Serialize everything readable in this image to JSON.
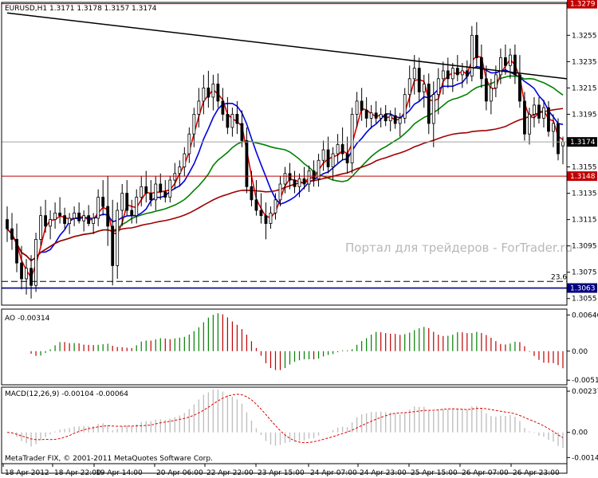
{
  "chart_data": {
    "type": "candlestick",
    "symbol_header": "EURUSD,H1  1.3171 1.3178 1.3157 1.3174",
    "watermark": "Портал для трейдеров - ForTrader.ru",
    "copyright": "MetaTrader FIX, © 2001-2011 MetaQuotes Software Corp.",
    "price_panel": {
      "ylim": [
        1.305,
        1.328
      ],
      "y_ticks": [
        "1.3255",
        "1.3235",
        "1.3215",
        "1.3195",
        "1.3174",
        "1.3155",
        "1.3135",
        "1.3115",
        "1.3095",
        "1.3075",
        "1.3055"
      ],
      "tick_values": [
        1.3255,
        1.3235,
        1.3215,
        1.3195,
        1.3174,
        1.3155,
        1.3135,
        1.3115,
        1.3095,
        1.3075,
        1.3055
      ],
      "levels": [
        {
          "label": "1.3279",
          "value": 1.3279,
          "color": "#c00000",
          "style": "solid",
          "bg": "#c00000"
        },
        {
          "label": "1.3174",
          "value": 1.3174,
          "color": "#a0a0a0",
          "style": "solid",
          "bg": "#000000"
        },
        {
          "label": "1.3148",
          "value": 1.3148,
          "color": "#c00000",
          "style": "solid",
          "bg": "#c00000"
        },
        {
          "label": "1.3063",
          "value": 1.3063,
          "color": "#000080",
          "style": "solid",
          "bg": "#000080"
        }
      ],
      "fib_label": "23.6",
      "fib_value": 1.3068,
      "trendline": {
        "from": [
          0,
          1.3272
        ],
        "to": [
          125,
          1.3222
        ]
      },
      "candles": [
        {
          "o": 1.3115,
          "h": 1.3125,
          "l": 1.3098,
          "c": 1.3108
        },
        {
          "o": 1.3108,
          "h": 1.312,
          "l": 1.3092,
          "c": 1.31
        },
        {
          "o": 1.31,
          "h": 1.3112,
          "l": 1.3075,
          "c": 1.3082
        },
        {
          "o": 1.3082,
          "h": 1.3095,
          "l": 1.3062,
          "c": 1.307
        },
        {
          "o": 1.307,
          "h": 1.3085,
          "l": 1.3058,
          "c": 1.3078
        },
        {
          "o": 1.3078,
          "h": 1.3088,
          "l": 1.3055,
          "c": 1.3065
        },
        {
          "o": 1.3065,
          "h": 1.3105,
          "l": 1.306,
          "c": 1.31
        },
        {
          "o": 1.31,
          "h": 1.3125,
          "l": 1.3095,
          "c": 1.3118
        },
        {
          "o": 1.3118,
          "h": 1.313,
          "l": 1.3105,
          "c": 1.311
        },
        {
          "o": 1.311,
          "h": 1.3122,
          "l": 1.31,
          "c": 1.3115
        },
        {
          "o": 1.3115,
          "h": 1.3128,
          "l": 1.3108,
          "c": 1.312
        },
        {
          "o": 1.312,
          "h": 1.3132,
          "l": 1.3112,
          "c": 1.3118
        },
        {
          "o": 1.3118,
          "h": 1.3124,
          "l": 1.3108,
          "c": 1.3112
        },
        {
          "o": 1.3112,
          "h": 1.312,
          "l": 1.3104,
          "c": 1.3116
        },
        {
          "o": 1.3116,
          "h": 1.3125,
          "l": 1.311,
          "c": 1.312
        },
        {
          "o": 1.312,
          "h": 1.3128,
          "l": 1.3112,
          "c": 1.3114
        },
        {
          "o": 1.3114,
          "h": 1.3122,
          "l": 1.3106,
          "c": 1.3118
        },
        {
          "o": 1.3118,
          "h": 1.3126,
          "l": 1.311,
          "c": 1.3112
        },
        {
          "o": 1.3112,
          "h": 1.312,
          "l": 1.3104,
          "c": 1.3116
        },
        {
          "o": 1.3116,
          "h": 1.3138,
          "l": 1.311,
          "c": 1.3132
        },
        {
          "o": 1.3132,
          "h": 1.3145,
          "l": 1.3118,
          "c": 1.3125
        },
        {
          "o": 1.3125,
          "h": 1.3148,
          "l": 1.3095,
          "c": 1.311
        },
        {
          "o": 1.311,
          "h": 1.313,
          "l": 1.3065,
          "c": 1.308
        },
        {
          "o": 1.308,
          "h": 1.3128,
          "l": 1.307,
          "c": 1.3122
        },
        {
          "o": 1.3122,
          "h": 1.3142,
          "l": 1.311,
          "c": 1.3135
        },
        {
          "o": 1.3135,
          "h": 1.3145,
          "l": 1.3118,
          "c": 1.3122
        },
        {
          "o": 1.3122,
          "h": 1.313,
          "l": 1.3112,
          "c": 1.3118
        },
        {
          "o": 1.3118,
          "h": 1.3138,
          "l": 1.3112,
          "c": 1.3132
        },
        {
          "o": 1.3132,
          "h": 1.3148,
          "l": 1.3125,
          "c": 1.314
        },
        {
          "o": 1.314,
          "h": 1.3152,
          "l": 1.3128,
          "c": 1.3135
        },
        {
          "o": 1.3135,
          "h": 1.3145,
          "l": 1.3125,
          "c": 1.313
        },
        {
          "o": 1.313,
          "h": 1.3148,
          "l": 1.3122,
          "c": 1.3142
        },
        {
          "o": 1.3142,
          "h": 1.315,
          "l": 1.313,
          "c": 1.3136
        },
        {
          "o": 1.3136,
          "h": 1.3145,
          "l": 1.3128,
          "c": 1.3132
        },
        {
          "o": 1.3132,
          "h": 1.3148,
          "l": 1.3128,
          "c": 1.3145
        },
        {
          "o": 1.3145,
          "h": 1.3158,
          "l": 1.3138,
          "c": 1.315
        },
        {
          "o": 1.315,
          "h": 1.316,
          "l": 1.314,
          "c": 1.3155
        },
        {
          "o": 1.3155,
          "h": 1.317,
          "l": 1.3148,
          "c": 1.3165
        },
        {
          "o": 1.3165,
          "h": 1.3185,
          "l": 1.3158,
          "c": 1.318
        },
        {
          "o": 1.318,
          "h": 1.32,
          "l": 1.317,
          "c": 1.3195
        },
        {
          "o": 1.3195,
          "h": 1.3215,
          "l": 1.3185,
          "c": 1.3205
        },
        {
          "o": 1.3205,
          "h": 1.3225,
          "l": 1.3195,
          "c": 1.3215
        },
        {
          "o": 1.3215,
          "h": 1.3228,
          "l": 1.32,
          "c": 1.3208
        },
        {
          "o": 1.3208,
          "h": 1.3225,
          "l": 1.3198,
          "c": 1.3218
        },
        {
          "o": 1.3218,
          "h": 1.3226,
          "l": 1.32,
          "c": 1.3205
        },
        {
          "o": 1.3205,
          "h": 1.3215,
          "l": 1.319,
          "c": 1.3195
        },
        {
          "o": 1.3195,
          "h": 1.3208,
          "l": 1.318,
          "c": 1.3185
        },
        {
          "o": 1.3185,
          "h": 1.32,
          "l": 1.3178,
          "c": 1.3195
        },
        {
          "o": 1.3195,
          "h": 1.3205,
          "l": 1.318,
          "c": 1.3188
        },
        {
          "o": 1.3188,
          "h": 1.3198,
          "l": 1.317,
          "c": 1.3175
        },
        {
          "o": 1.3175,
          "h": 1.3185,
          "l": 1.3135,
          "c": 1.314
        },
        {
          "o": 1.314,
          "h": 1.3152,
          "l": 1.3125,
          "c": 1.313
        },
        {
          "o": 1.313,
          "h": 1.3145,
          "l": 1.3118,
          "c": 1.3122
        },
        {
          "o": 1.3122,
          "h": 1.3135,
          "l": 1.3112,
          "c": 1.3118
        },
        {
          "o": 1.3118,
          "h": 1.3128,
          "l": 1.31,
          "c": 1.3112
        },
        {
          "o": 1.3112,
          "h": 1.3125,
          "l": 1.3108,
          "c": 1.312
        },
        {
          "o": 1.312,
          "h": 1.3135,
          "l": 1.3115,
          "c": 1.313
        },
        {
          "o": 1.313,
          "h": 1.3148,
          "l": 1.3125,
          "c": 1.3142
        },
        {
          "o": 1.3142,
          "h": 1.3155,
          "l": 1.3135,
          "c": 1.315
        },
        {
          "o": 1.315,
          "h": 1.3158,
          "l": 1.3138,
          "c": 1.3145
        },
        {
          "o": 1.3145,
          "h": 1.3152,
          "l": 1.3135,
          "c": 1.314
        },
        {
          "o": 1.314,
          "h": 1.315,
          "l": 1.3132,
          "c": 1.3146
        },
        {
          "o": 1.3146,
          "h": 1.3155,
          "l": 1.3138,
          "c": 1.3142
        },
        {
          "o": 1.3142,
          "h": 1.3156,
          "l": 1.3136,
          "c": 1.3152
        },
        {
          "o": 1.3152,
          "h": 1.316,
          "l": 1.314,
          "c": 1.3146
        },
        {
          "o": 1.3146,
          "h": 1.3165,
          "l": 1.314,
          "c": 1.316
        },
        {
          "o": 1.316,
          "h": 1.3175,
          "l": 1.3152,
          "c": 1.3168
        },
        {
          "o": 1.3168,
          "h": 1.3178,
          "l": 1.315,
          "c": 1.3155
        },
        {
          "o": 1.3155,
          "h": 1.317,
          "l": 1.3145,
          "c": 1.3165
        },
        {
          "o": 1.3165,
          "h": 1.318,
          "l": 1.3158,
          "c": 1.3172
        },
        {
          "o": 1.3172,
          "h": 1.3185,
          "l": 1.316,
          "c": 1.3165
        },
        {
          "o": 1.3165,
          "h": 1.3178,
          "l": 1.315,
          "c": 1.3158
        },
        {
          "o": 1.3158,
          "h": 1.32,
          "l": 1.315,
          "c": 1.3195
        },
        {
          "o": 1.3195,
          "h": 1.3212,
          "l": 1.3185,
          "c": 1.3205
        },
        {
          "o": 1.3205,
          "h": 1.3215,
          "l": 1.319,
          "c": 1.3198
        },
        {
          "o": 1.3198,
          "h": 1.3208,
          "l": 1.3185,
          "c": 1.3192
        },
        {
          "o": 1.3192,
          "h": 1.3202,
          "l": 1.3184,
          "c": 1.3196
        },
        {
          "o": 1.3196,
          "h": 1.3205,
          "l": 1.3188,
          "c": 1.3192
        },
        {
          "o": 1.3192,
          "h": 1.32,
          "l": 1.3185,
          "c": 1.3195
        },
        {
          "o": 1.3195,
          "h": 1.3202,
          "l": 1.3186,
          "c": 1.319
        },
        {
          "o": 1.319,
          "h": 1.3198,
          "l": 1.3182,
          "c": 1.3194
        },
        {
          "o": 1.3194,
          "h": 1.32,
          "l": 1.3184,
          "c": 1.3188
        },
        {
          "o": 1.3188,
          "h": 1.3196,
          "l": 1.3178,
          "c": 1.3192
        },
        {
          "o": 1.3192,
          "h": 1.3215,
          "l": 1.3188,
          "c": 1.321
        },
        {
          "o": 1.321,
          "h": 1.3232,
          "l": 1.32,
          "c": 1.3222
        },
        {
          "o": 1.3222,
          "h": 1.324,
          "l": 1.321,
          "c": 1.323
        },
        {
          "o": 1.323,
          "h": 1.3238,
          "l": 1.3205,
          "c": 1.3212
        },
        {
          "o": 1.3212,
          "h": 1.3225,
          "l": 1.32,
          "c": 1.3218
        },
        {
          "o": 1.3218,
          "h": 1.3226,
          "l": 1.318,
          "c": 1.3188
        },
        {
          "o": 1.3188,
          "h": 1.322,
          "l": 1.317,
          "c": 1.321
        },
        {
          "o": 1.321,
          "h": 1.323,
          "l": 1.3195,
          "c": 1.3222
        },
        {
          "o": 1.3222,
          "h": 1.3235,
          "l": 1.321,
          "c": 1.3228
        },
        {
          "o": 1.3228,
          "h": 1.3238,
          "l": 1.3215,
          "c": 1.3222
        },
        {
          "o": 1.3222,
          "h": 1.3234,
          "l": 1.3212,
          "c": 1.323
        },
        {
          "o": 1.323,
          "h": 1.324,
          "l": 1.322,
          "c": 1.3225
        },
        {
          "o": 1.3225,
          "h": 1.3234,
          "l": 1.3215,
          "c": 1.3228
        },
        {
          "o": 1.3228,
          "h": 1.3236,
          "l": 1.3218,
          "c": 1.3224
        },
        {
          "o": 1.3224,
          "h": 1.3262,
          "l": 1.322,
          "c": 1.3255
        },
        {
          "o": 1.3255,
          "h": 1.3265,
          "l": 1.323,
          "c": 1.3238
        },
        {
          "o": 1.3238,
          "h": 1.3248,
          "l": 1.3215,
          "c": 1.3222
        },
        {
          "o": 1.3222,
          "h": 1.3232,
          "l": 1.3198,
          "c": 1.3205
        },
        {
          "o": 1.3205,
          "h": 1.3222,
          "l": 1.3195,
          "c": 1.3215
        },
        {
          "o": 1.3215,
          "h": 1.3232,
          "l": 1.3208,
          "c": 1.3225
        },
        {
          "o": 1.3225,
          "h": 1.3245,
          "l": 1.3218,
          "c": 1.3238
        },
        {
          "o": 1.3238,
          "h": 1.3248,
          "l": 1.3225,
          "c": 1.3232
        },
        {
          "o": 1.3232,
          "h": 1.3245,
          "l": 1.3222,
          "c": 1.324
        },
        {
          "o": 1.324,
          "h": 1.3248,
          "l": 1.3218,
          "c": 1.3225
        },
        {
          "o": 1.3225,
          "h": 1.324,
          "l": 1.32,
          "c": 1.3205
        },
        {
          "o": 1.3205,
          "h": 1.3212,
          "l": 1.3175,
          "c": 1.318
        },
        {
          "o": 1.318,
          "h": 1.32,
          "l": 1.3172,
          "c": 1.3195
        },
        {
          "o": 1.3195,
          "h": 1.3208,
          "l": 1.3185,
          "c": 1.3202
        },
        {
          "o": 1.3202,
          "h": 1.3208,
          "l": 1.3188,
          "c": 1.3192
        },
        {
          "o": 1.3192,
          "h": 1.3206,
          "l": 1.3185,
          "c": 1.32
        },
        {
          "o": 1.32,
          "h": 1.3205,
          "l": 1.3178,
          "c": 1.3182
        },
        {
          "o": 1.3182,
          "h": 1.3195,
          "l": 1.317,
          "c": 1.3188
        },
        {
          "o": 1.3188,
          "h": 1.3192,
          "l": 1.316,
          "c": 1.3165
        },
        {
          "o": 1.3171,
          "h": 1.3178,
          "l": 1.3157,
          "c": 1.3174
        }
      ],
      "moving_averages": [
        {
          "name": "MA-red-fast",
          "color": "#e00000",
          "width": 1.6
        },
        {
          "name": "MA-blue",
          "color": "#0000e0",
          "width": 1.6
        },
        {
          "name": "MA-green",
          "color": "#008000",
          "width": 1.6
        },
        {
          "name": "MA-darkred-slow",
          "color": "#a00000",
          "width": 1.6
        }
      ]
    },
    "ao_panel": {
      "label": "AO -0.00314",
      "ylim": [
        -0.006,
        0.0075
      ],
      "y_ticks": [
        "0.00646",
        "0.00",
        "-0.00518"
      ],
      "tick_values": [
        0.00646,
        0.0,
        -0.00518
      ],
      "up_color": "#008000",
      "down_color": "#c00000"
    },
    "macd_panel": {
      "label": "MACD(12,26,9) -0.00104 -0.00064",
      "ylim": [
        -0.0018,
        0.0026
      ],
      "y_ticks": [
        "0.00237",
        "0.00",
        "-0.00145"
      ],
      "tick_values": [
        0.00237,
        0.0,
        -0.00145
      ],
      "hist_color": "#c0c0c0",
      "signal_color": "#e00000"
    },
    "x_ticks": [
      "18 Apr 2012",
      "18 Apr 22:00",
      "19 Apr 14:00",
      "20 Apr 06:00",
      "22 Apr 22:00",
      "23 Apr 15:00",
      "24 Apr 07:00",
      "24 Apr 23:00",
      "25 Apr 15:00",
      "26 Apr 07:00",
      "26 Apr 23:00"
    ],
    "x_tick_index": [
      0,
      12,
      26,
      40,
      54,
      68,
      82,
      96,
      110,
      110.5,
      118
    ]
  }
}
